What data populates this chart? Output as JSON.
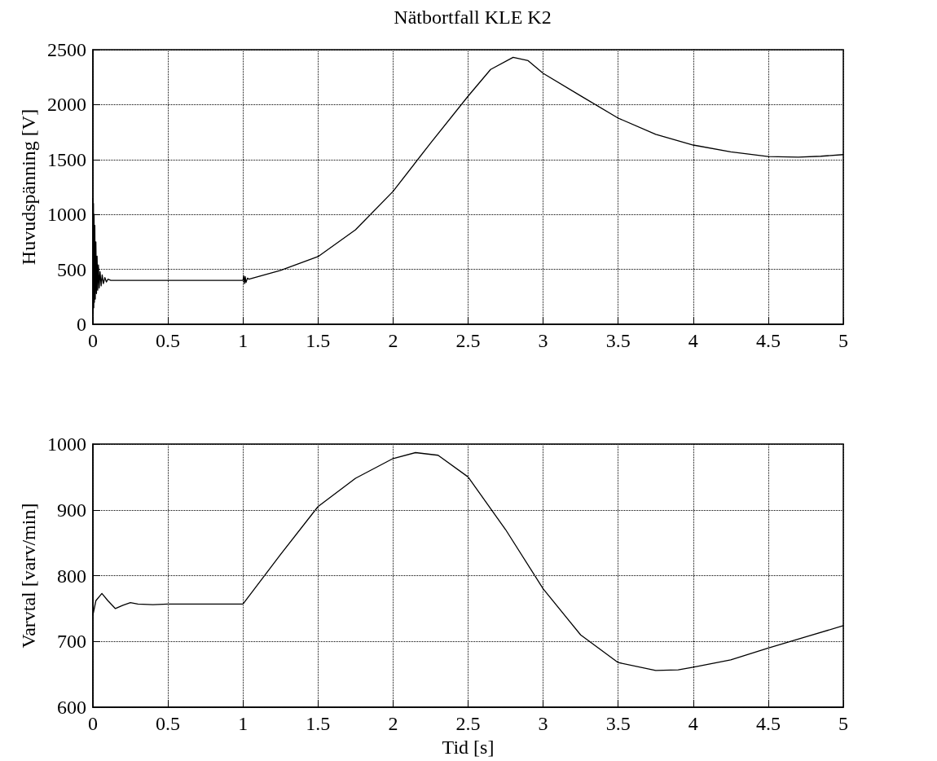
{
  "chart_data": [
    {
      "type": "line",
      "title": "Nätbortfall KLE K2",
      "ylabel": "Huvudspänning [V]",
      "xlim": [
        0,
        5
      ],
      "xticks": [
        0,
        0.5,
        1,
        1.5,
        2,
        2.5,
        3,
        3.5,
        4,
        4.5,
        5
      ],
      "ylim": [
        0,
        2500
      ],
      "yticks": [
        0,
        500,
        1000,
        1500,
        2000,
        2500
      ],
      "grid": true,
      "marker": "none",
      "line_style": "solid",
      "series": [
        {
          "color": "#000000",
          "x": [
            0,
            0.002,
            0.004,
            0.006,
            0.008,
            0.01,
            0.013,
            0.016,
            0.02,
            0.024,
            0.028,
            0.032,
            0.037,
            0.042,
            0.048,
            0.055,
            0.062,
            0.07,
            0.08,
            0.09,
            0.1,
            0.12,
            1.0,
            1.005,
            1.01,
            1.015,
            1.02,
            1.03,
            1.04,
            1.25,
            1.5,
            1.75,
            2.0,
            2.25,
            2.5,
            2.65,
            2.8,
            2.9,
            3.0,
            3.25,
            3.5,
            3.75,
            4.0,
            4.25,
            4.5,
            4.7,
            4.85,
            5.0
          ],
          "values": [
            1150,
            100,
            1100,
            150,
            1000,
            200,
            900,
            230,
            750,
            280,
            620,
            310,
            540,
            330,
            480,
            350,
            450,
            370,
            425,
            385,
            410,
            400,
            400,
            440,
            370,
            435,
            380,
            420,
            410,
            490,
            616,
            860,
            1210,
            1650,
            2077,
            2320,
            2430,
            2400,
            2285,
            2080,
            1877,
            1730,
            1632,
            1570,
            1528,
            1522,
            1530,
            1545
          ]
        }
      ]
    },
    {
      "type": "line",
      "xlabel": "Tid [s]",
      "ylabel": "Varvtal [varv/min]",
      "xlim": [
        0,
        5
      ],
      "xticks": [
        0,
        0.5,
        1,
        1.5,
        2,
        2.5,
        3,
        3.5,
        4,
        4.5,
        5
      ],
      "ylim": [
        600,
        1000
      ],
      "yticks": [
        600,
        700,
        800,
        900,
        1000
      ],
      "grid": true,
      "marker": "none",
      "line_style": "solid",
      "series": [
        {
          "color": "#000000",
          "x": [
            0,
            0.02,
            0.06,
            0.1,
            0.15,
            0.2,
            0.25,
            0.3,
            0.4,
            0.5,
            1.0,
            1.25,
            1.5,
            1.75,
            2.0,
            2.15,
            2.3,
            2.5,
            2.75,
            3.0,
            3.25,
            3.5,
            3.75,
            3.9,
            4.0,
            4.25,
            4.5,
            4.75,
            5.0
          ],
          "values": [
            740,
            762,
            773,
            762,
            750,
            755,
            759,
            757,
            756,
            757,
            757,
            832,
            905,
            948,
            978,
            987,
            983,
            950,
            870,
            780,
            710,
            668,
            656,
            657,
            661,
            672,
            690,
            707,
            724
          ]
        }
      ]
    }
  ]
}
